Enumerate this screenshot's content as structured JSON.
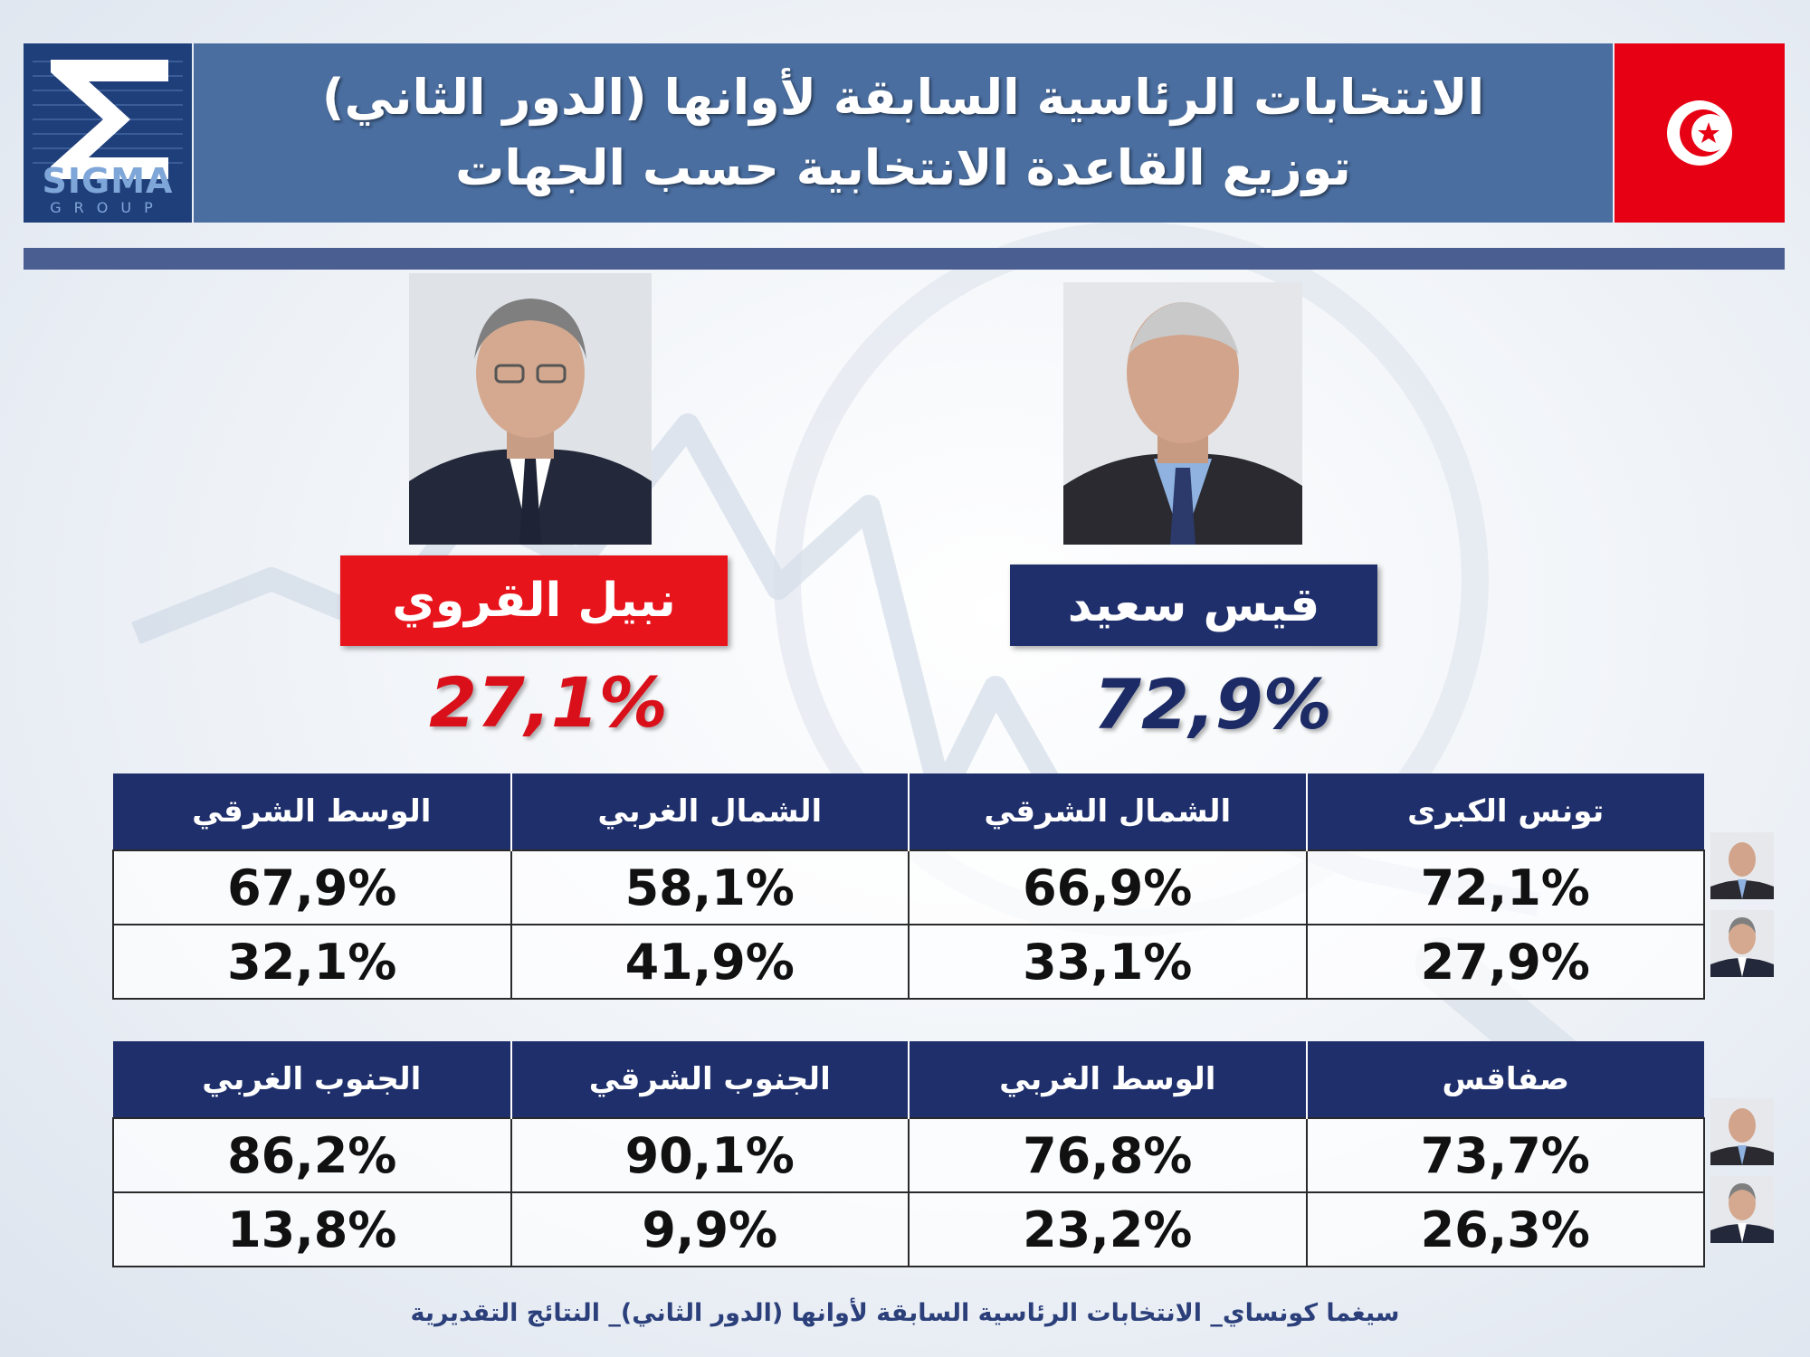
{
  "header": {
    "logo_text": "SIGMA",
    "logo_subtext": "GROUP",
    "title_line1": "الانتخابات الرئاسية السابقة لأوانها (الدور الثاني)",
    "title_line2": "توزيع القاعدة الانتخابية حسب الجهات",
    "flag": "tunisia-flag"
  },
  "candidates": [
    {
      "name": "نبيل القروي",
      "percent": "27,1%",
      "color": "#e8141c",
      "photo": "karoui-portrait"
    },
    {
      "name": "قيس سعيد",
      "percent": "72,9%",
      "color": "#1f2f6b",
      "photo": "saied-portrait"
    }
  ],
  "table1": {
    "headers": [
      "الوسط الشرقي",
      "الشمال الغربي",
      "الشمال الشرقي",
      "تونس الكبرى"
    ],
    "rows": [
      [
        "67,9%",
        "58,1%",
        "66,9%",
        "72,1%"
      ],
      [
        "32,1%",
        "41,9%",
        "33,1%",
        "27,9%"
      ]
    ]
  },
  "table2": {
    "headers": [
      "الجنوب الغربي",
      "الجنوب الشرقي",
      "الوسط الغربي",
      "صفاقس"
    ],
    "rows": [
      [
        "86,2%",
        "90,1%",
        "76,8%",
        "73,7%"
      ],
      [
        "13,8%",
        "9,9%",
        "23,2%",
        "26,3%"
      ]
    ]
  },
  "row_icons": [
    "saied-thumbnail",
    "karoui-thumbnail",
    "saied-thumbnail",
    "karoui-thumbnail"
  ],
  "footer": "سيغما كونساي_ الانتخابات الرئاسية السابقة لأوانها (الدور الثاني)_ النتائج التقديرية",
  "colors": {
    "navy": "#1f2f6b",
    "red": "#e8141c",
    "header_blue": "#4a6ea0"
  }
}
